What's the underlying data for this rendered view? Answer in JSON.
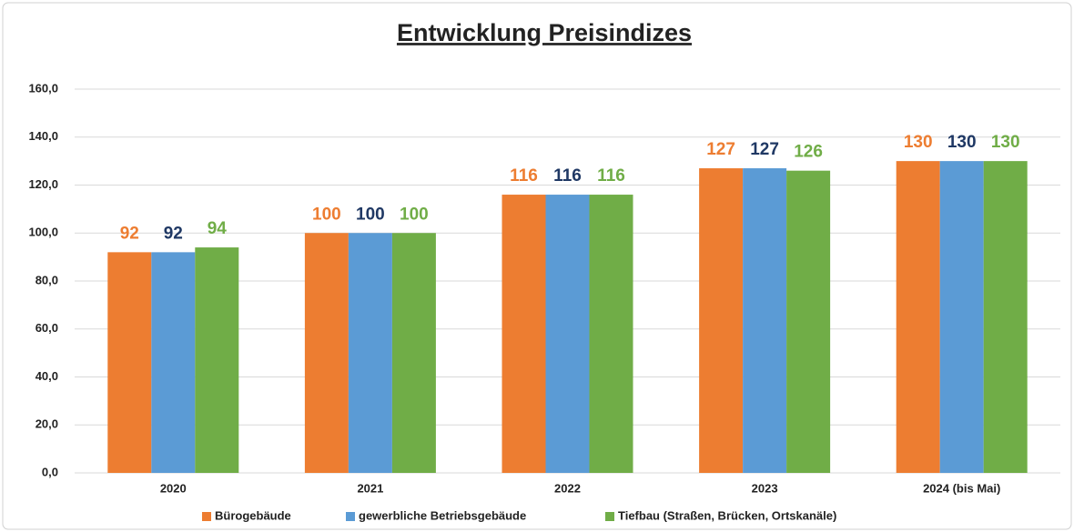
{
  "chart_data": {
    "type": "bar",
    "title": "Entwicklung Preisindizes",
    "categories": [
      "2020",
      "2021",
      "2022",
      "2023",
      "2024 (bis Mai)"
    ],
    "series": [
      {
        "name": "Bürogebäude",
        "color": "#ed7d31",
        "label_color": "#ed7d31",
        "values": [
          92,
          100,
          116,
          127,
          130
        ]
      },
      {
        "name": "gewerbliche Betriebsgebäude",
        "color": "#5b9bd5",
        "label_color": "#1f3864",
        "values": [
          92,
          100,
          116,
          127,
          130
        ]
      },
      {
        "name": "Tiefbau (Straßen, Brücken, Ortskanäle)",
        "color": "#70ad47",
        "label_color": "#70ad47",
        "values": [
          94,
          100,
          116,
          126,
          130
        ]
      }
    ],
    "ylim": [
      0,
      160
    ],
    "yticks": [
      {
        "value": 0,
        "label": "0,0"
      },
      {
        "value": 20,
        "label": "20,0"
      },
      {
        "value": 40,
        "label": "40,0"
      },
      {
        "value": 60,
        "label": "60,0"
      },
      {
        "value": 80,
        "label": "80,0"
      },
      {
        "value": 100,
        "label": "100,0"
      },
      {
        "value": 120,
        "label": "120,0"
      },
      {
        "value": 140,
        "label": "140,0"
      },
      {
        "value": 160,
        "label": "160,0"
      }
    ],
    "grid": true,
    "legend": "bottom"
  }
}
